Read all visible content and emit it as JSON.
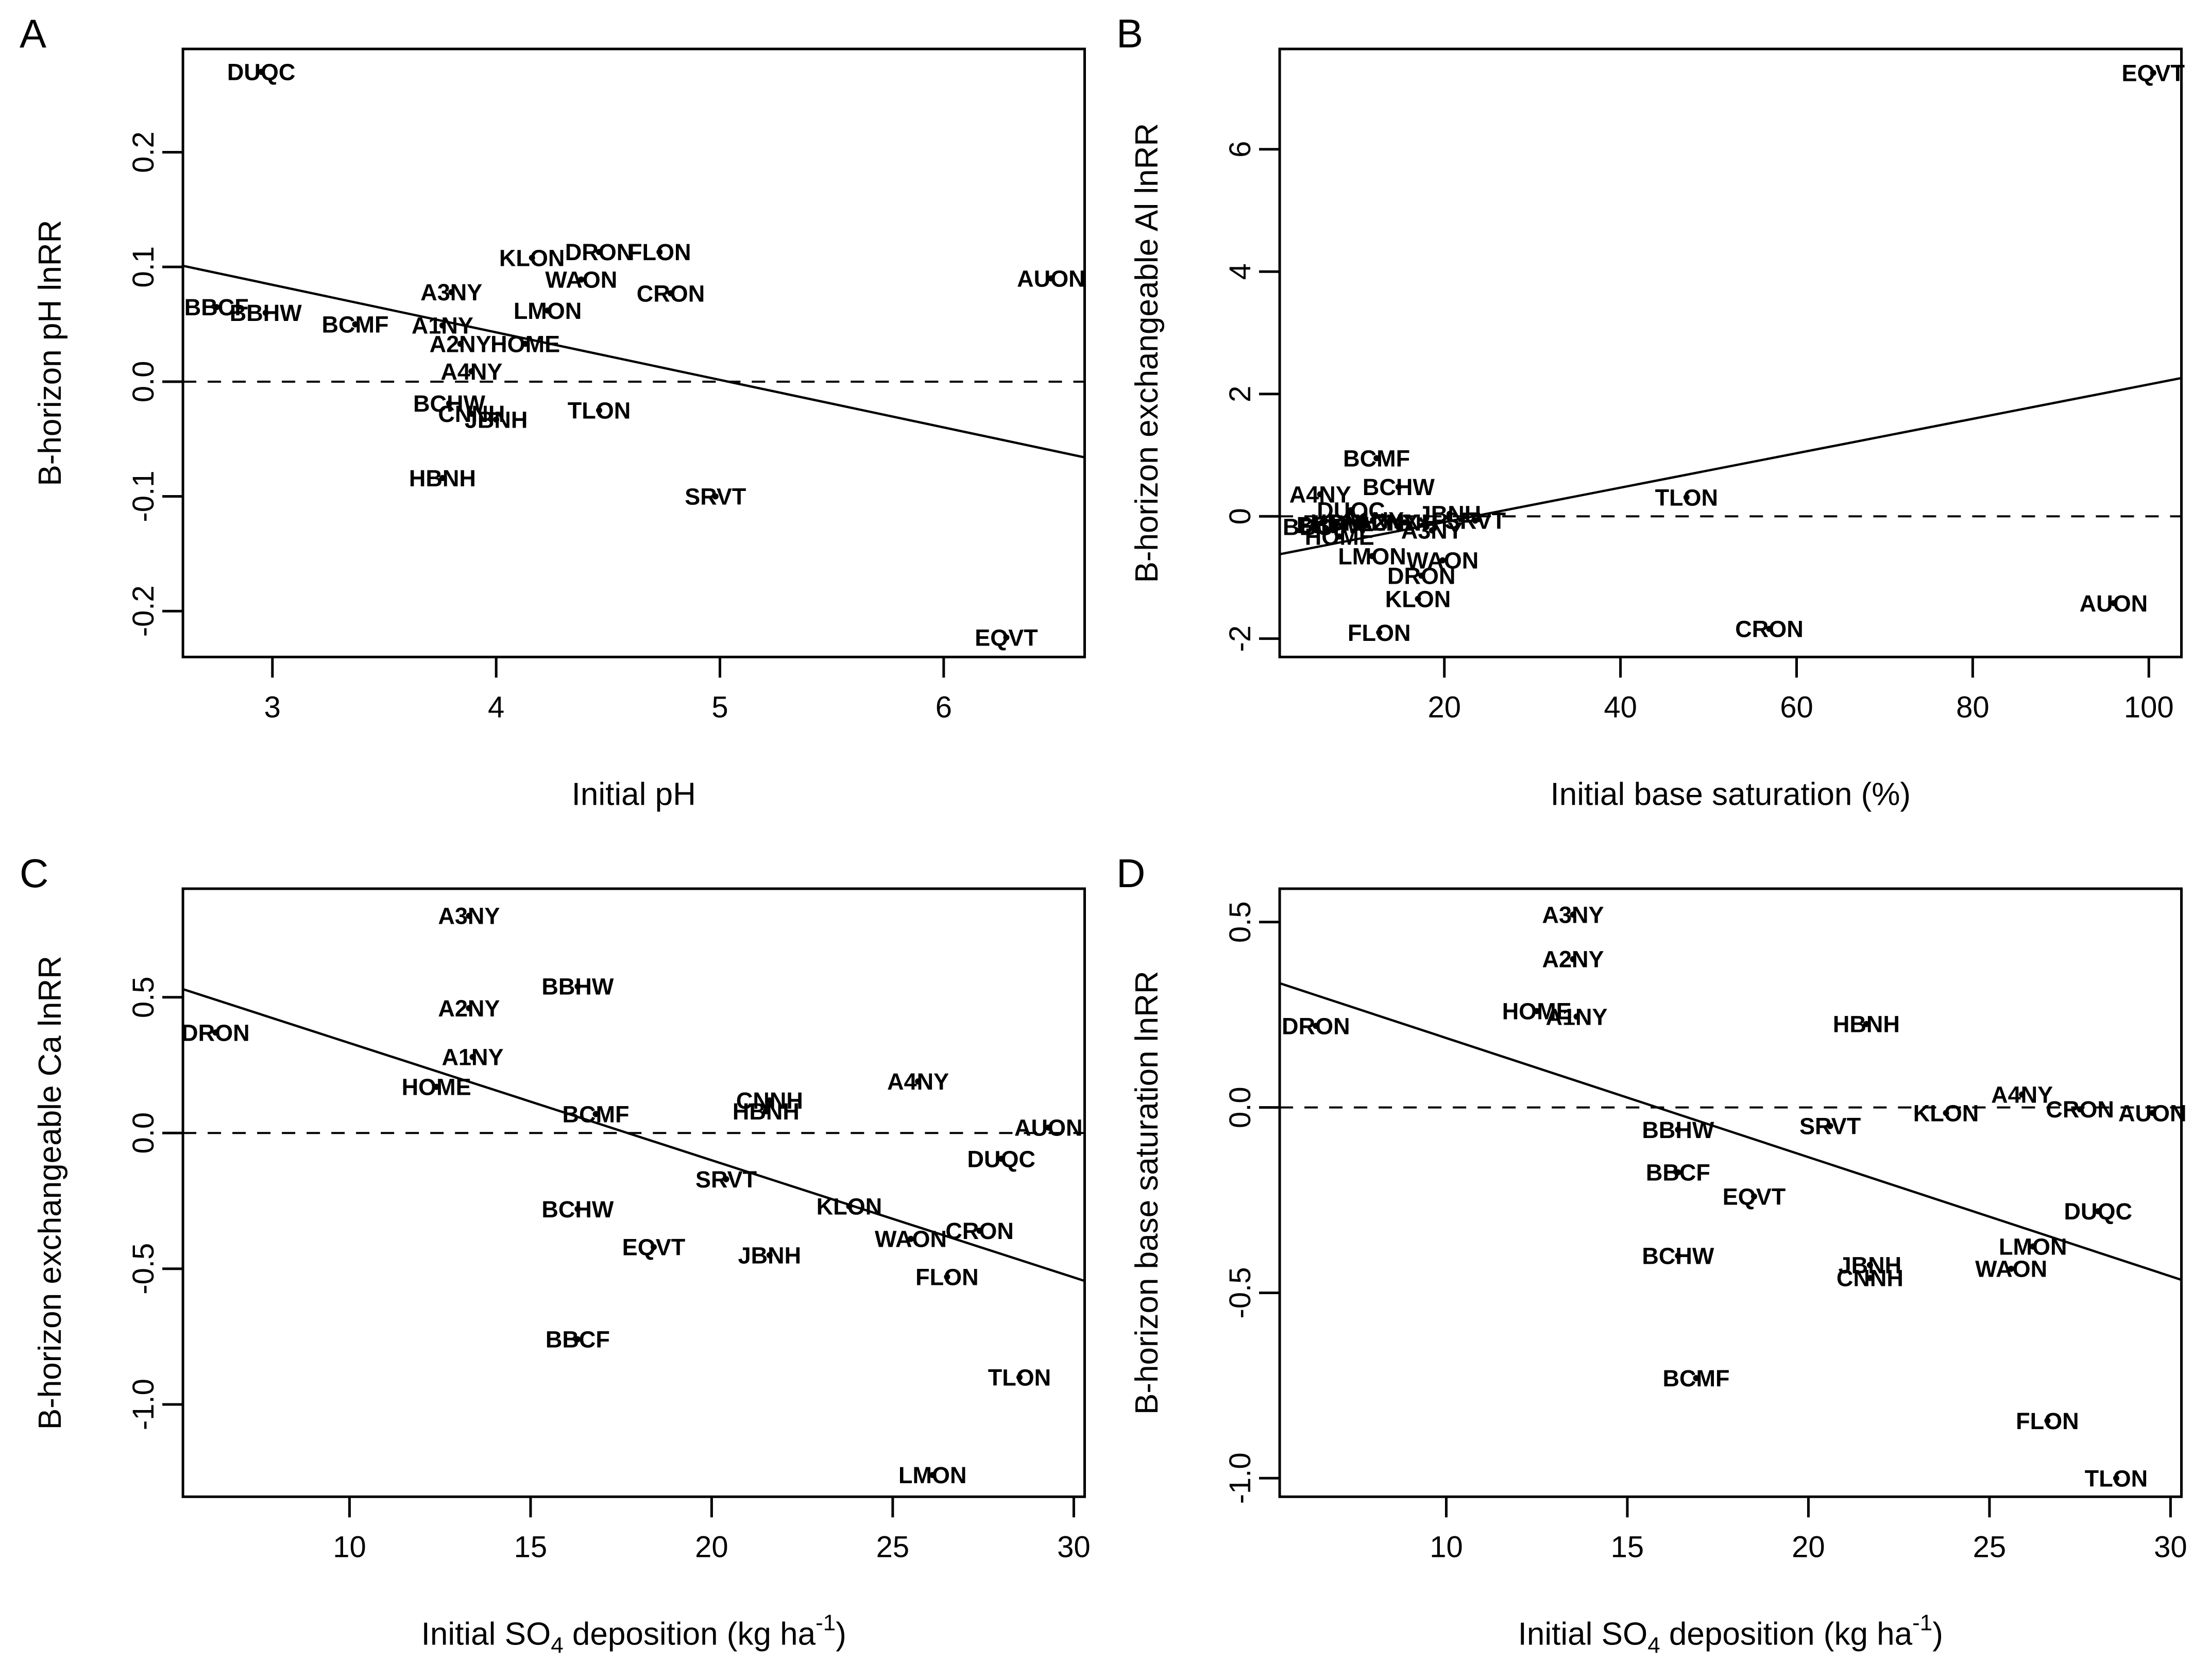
{
  "figure": {
    "background": "#ffffff",
    "ink": "#000000",
    "panel_letters": [
      "A",
      "B",
      "C",
      "D"
    ]
  },
  "chart_data": [
    {
      "type": "scatter",
      "panel": "A",
      "ylabel": "B-horizon pH lnRR",
      "xlabel_parts": [
        {
          "t": "Initial pH"
        }
      ],
      "xlim": [
        2.6,
        6.63
      ],
      "ylim": [
        -0.24,
        0.29
      ],
      "xticks": [
        3,
        4,
        5,
        6
      ],
      "xtick_labels": [
        "3",
        "4",
        "5",
        "6"
      ],
      "yticks": [
        -0.2,
        -0.1,
        0.0,
        0.1,
        0.2
      ],
      "ytick_labels": [
        "-0.2",
        "-0.1",
        "0.0",
        "0.1",
        "0.2"
      ],
      "zero_line": true,
      "trend": {
        "x1": 2.6,
        "y1": 0.101,
        "x2": 6.63,
        "y2": -0.066
      },
      "points": [
        {
          "label": "DUQC",
          "x": 2.95,
          "y": 0.27
        },
        {
          "label": "BBCF",
          "x": 2.75,
          "y": 0.065
        },
        {
          "label": "BBHW",
          "x": 2.97,
          "y": 0.06
        },
        {
          "label": "BCMF",
          "x": 3.37,
          "y": 0.05
        },
        {
          "label": "A3NY",
          "x": 3.8,
          "y": 0.078
        },
        {
          "label": "A1NY",
          "x": 3.76,
          "y": 0.049
        },
        {
          "label": "A2NY",
          "x": 3.84,
          "y": 0.033
        },
        {
          "label": "HOME",
          "x": 4.13,
          "y": 0.033
        },
        {
          "label": "A4NY",
          "x": 3.89,
          "y": 0.009
        },
        {
          "label": "KLON",
          "x": 4.16,
          "y": 0.108
        },
        {
          "label": "DRON",
          "x": 4.46,
          "y": 0.113
        },
        {
          "label": "FLON",
          "x": 4.73,
          "y": 0.113
        },
        {
          "label": "WAON",
          "x": 4.38,
          "y": 0.089
        },
        {
          "label": "LMON",
          "x": 4.23,
          "y": 0.062
        },
        {
          "label": "CRON",
          "x": 4.78,
          "y": 0.077
        },
        {
          "label": "AUON",
          "x": 6.48,
          "y": 0.09
        },
        {
          "label": "BCHW",
          "x": 3.79,
          "y": -0.019
        },
        {
          "label": "CNNH",
          "x": 3.89,
          "y": -0.028
        },
        {
          "label": "JBNH",
          "x": 4.0,
          "y": -0.033
        },
        {
          "label": "TLON",
          "x": 4.46,
          "y": -0.025
        },
        {
          "label": "HBNH",
          "x": 3.76,
          "y": -0.084
        },
        {
          "label": "SRVT",
          "x": 4.98,
          "y": -0.1
        },
        {
          "label": "EQVT",
          "x": 6.28,
          "y": -0.223
        }
      ]
    },
    {
      "type": "scatter",
      "panel": "B",
      "ylabel": "B-horizon exchangeable Al lnRR",
      "xlabel_parts": [
        {
          "t": "Initial base saturation (%)"
        }
      ],
      "xlim": [
        1.3,
        103.7
      ],
      "ylim": [
        -2.3,
        7.64
      ],
      "xticks": [
        20,
        40,
        60,
        80,
        100
      ],
      "xtick_labels": [
        "20",
        "40",
        "60",
        "80",
        "100"
      ],
      "yticks": [
        -2,
        0,
        2,
        4,
        6
      ],
      "ytick_labels": [
        "-2",
        "0",
        "2",
        "4",
        "6"
      ],
      "zero_line": true,
      "trend": {
        "x1": 1.3,
        "y1": -0.62,
        "x2": 103.7,
        "y2": 2.26
      },
      "points": [
        {
          "label": "EQVT",
          "x": 100.5,
          "y": 7.25
        },
        {
          "label": "BCMF",
          "x": 12.3,
          "y": 0.95
        },
        {
          "label": "BCHW",
          "x": 14.8,
          "y": 0.48
        },
        {
          "label": "A4NY",
          "x": 5.9,
          "y": 0.36
        },
        {
          "label": "DUQC",
          "x": 9.4,
          "y": 0.1
        },
        {
          "label": "BBCF",
          "x": 5.3,
          "y": -0.17
        },
        {
          "label": "BBHW",
          "x": 7.3,
          "y": -0.14
        },
        {
          "label": "HBNH",
          "x": 8.6,
          "y": -0.1
        },
        {
          "label": "A1NY",
          "x": 11.9,
          "y": -0.06
        },
        {
          "label": "A2NY",
          "x": 13.5,
          "y": -0.1
        },
        {
          "label": "CNNH",
          "x": 15.5,
          "y": -0.1
        },
        {
          "label": "A3NY",
          "x": 18.6,
          "y": -0.23
        },
        {
          "label": "HOME",
          "x": 8.1,
          "y": -0.33
        },
        {
          "label": "JBNH",
          "x": 20.6,
          "y": 0.04
        },
        {
          "label": "SRVT",
          "x": 23.5,
          "y": -0.07
        },
        {
          "label": "TLON",
          "x": 47.5,
          "y": 0.31
        },
        {
          "label": "LMON",
          "x": 11.8,
          "y": -0.65
        },
        {
          "label": "WAON",
          "x": 19.8,
          "y": -0.72
        },
        {
          "label": "DRON",
          "x": 17.4,
          "y": -0.97
        },
        {
          "label": "KLON",
          "x": 17.0,
          "y": -1.35
        },
        {
          "label": "FLON",
          "x": 12.6,
          "y": -1.9
        },
        {
          "label": "CRON",
          "x": 56.9,
          "y": -1.84
        },
        {
          "label": "AUON",
          "x": 96.0,
          "y": -1.42
        }
      ]
    },
    {
      "type": "scatter",
      "panel": "C",
      "ylabel": "B-horizon exchangeable Ca lnRR",
      "xlabel_parts": [
        {
          "t": "Initial SO"
        },
        {
          "t": "4",
          "sub": true
        },
        {
          "t": " deposition (kg ha"
        },
        {
          "t": "-1",
          "sup": true
        },
        {
          "t": ")"
        }
      ],
      "xlim": [
        5.4,
        30.3
      ],
      "ylim": [
        -1.34,
        0.9
      ],
      "xticks": [
        10,
        15,
        20,
        25,
        30
      ],
      "xtick_labels": [
        "10",
        "15",
        "20",
        "25",
        "30"
      ],
      "yticks": [
        -1.0,
        -0.5,
        0.0,
        0.5
      ],
      "ytick_labels": [
        "-1.0",
        "-0.5",
        "0.0",
        "0.5"
      ],
      "zero_line": true,
      "trend": {
        "x1": 5.4,
        "y1": 0.53,
        "x2": 30.3,
        "y2": -0.545
      },
      "points": [
        {
          "label": "A3NY",
          "x": 13.3,
          "y": 0.8
        },
        {
          "label": "BBHW",
          "x": 16.3,
          "y": 0.54
        },
        {
          "label": "A2NY",
          "x": 13.3,
          "y": 0.46
        },
        {
          "label": "DRON",
          "x": 6.3,
          "y": 0.37
        },
        {
          "label": "A1NY",
          "x": 13.4,
          "y": 0.28
        },
        {
          "label": "A4NY",
          "x": 25.7,
          "y": 0.19
        },
        {
          "label": "HOME",
          "x": 12.4,
          "y": 0.17
        },
        {
          "label": "CNNH",
          "x": 21.6,
          "y": 0.12
        },
        {
          "label": "HBNH",
          "x": 21.5,
          "y": 0.08
        },
        {
          "label": "BCMF",
          "x": 16.8,
          "y": 0.07
        },
        {
          "label": "AUON",
          "x": 29.3,
          "y": 0.02
        },
        {
          "label": "DUQC",
          "x": 28.0,
          "y": -0.095
        },
        {
          "label": "SRVT",
          "x": 20.4,
          "y": -0.17
        },
        {
          "label": "KLON",
          "x": 23.8,
          "y": -0.27
        },
        {
          "label": "BCHW",
          "x": 16.3,
          "y": -0.28
        },
        {
          "label": "CRON",
          "x": 27.4,
          "y": -0.36
        },
        {
          "label": "WAON",
          "x": 25.5,
          "y": -0.39
        },
        {
          "label": "EQVT",
          "x": 18.4,
          "y": -0.42
        },
        {
          "label": "JBNH",
          "x": 21.6,
          "y": -0.45
        },
        {
          "label": "FLON",
          "x": 26.5,
          "y": -0.53
        },
        {
          "label": "BBCF",
          "x": 16.3,
          "y": -0.76
        },
        {
          "label": "TLON",
          "x": 28.5,
          "y": -0.9
        },
        {
          "label": "LMON",
          "x": 26.1,
          "y": -1.26
        }
      ]
    },
    {
      "type": "scatter",
      "panel": "D",
      "ylabel": "B-horizon base saturation lnRR",
      "xlabel_parts": [
        {
          "t": "Initial SO"
        },
        {
          "t": "4",
          "sub": true
        },
        {
          "t": " deposition (kg ha"
        },
        {
          "t": "-1",
          "sup": true
        },
        {
          "t": ")"
        }
      ],
      "xlim": [
        5.4,
        30.3
      ],
      "ylim": [
        -1.05,
        0.59
      ],
      "xticks": [
        10,
        15,
        20,
        25,
        30
      ],
      "xtick_labels": [
        "10",
        "15",
        "20",
        "25",
        "30"
      ],
      "yticks": [
        -1.0,
        -0.5,
        0.0,
        0.5
      ],
      "ytick_labels": [
        "-1.0",
        "-0.5",
        "0.0",
        "0.5"
      ],
      "zero_line": true,
      "trend": {
        "x1": 5.4,
        "y1": 0.335,
        "x2": 30.3,
        "y2": -0.465
      },
      "points": [
        {
          "label": "A3NY",
          "x": 13.5,
          "y": 0.52
        },
        {
          "label": "A2NY",
          "x": 13.5,
          "y": 0.4
        },
        {
          "label": "HOME",
          "x": 12.5,
          "y": 0.26
        },
        {
          "label": "A1NY",
          "x": 13.6,
          "y": 0.245
        },
        {
          "label": "DRON",
          "x": 6.4,
          "y": 0.22
        },
        {
          "label": "HBNH",
          "x": 21.6,
          "y": 0.225
        },
        {
          "label": "A4NY",
          "x": 25.9,
          "y": 0.035
        },
        {
          "label": "CRON",
          "x": 27.5,
          "y": -0.005
        },
        {
          "label": "AUON",
          "x": 29.5,
          "y": -0.015
        },
        {
          "label": "KLON",
          "x": 23.8,
          "y": -0.015
        },
        {
          "label": "BBHW",
          "x": 16.4,
          "y": -0.06
        },
        {
          "label": "SRVT",
          "x": 20.6,
          "y": -0.05
        },
        {
          "label": "BBCF",
          "x": 16.4,
          "y": -0.175
        },
        {
          "label": "EQVT",
          "x": 18.5,
          "y": -0.24
        },
        {
          "label": "DUQC",
          "x": 28.0,
          "y": -0.28
        },
        {
          "label": "LMON",
          "x": 26.2,
          "y": -0.375
        },
        {
          "label": "BCHW",
          "x": 16.4,
          "y": -0.4
        },
        {
          "label": "JBNH",
          "x": 21.7,
          "y": -0.425
        },
        {
          "label": "CNNH",
          "x": 21.7,
          "y": -0.46
        },
        {
          "label": "WAON",
          "x": 25.6,
          "y": -0.435
        },
        {
          "label": "BCMF",
          "x": 16.9,
          "y": -0.73
        },
        {
          "label": "FLON",
          "x": 26.6,
          "y": -0.845
        },
        {
          "label": "TLON",
          "x": 28.5,
          "y": -1.0
        }
      ]
    }
  ]
}
